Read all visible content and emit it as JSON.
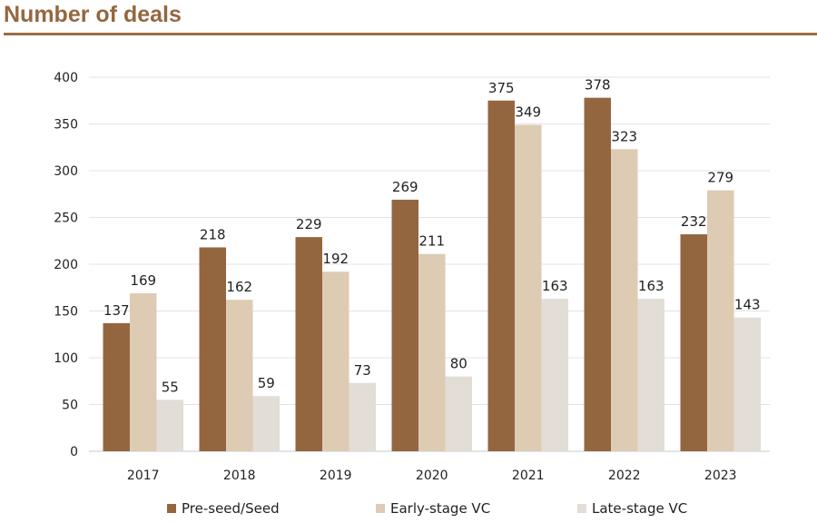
{
  "page": {
    "title": "Number of deals"
  },
  "chart_data": {
    "type": "bar",
    "title": "Number of deals",
    "xlabel": "",
    "ylabel": "",
    "ylim": [
      0,
      400
    ],
    "yticks": [
      0,
      50,
      100,
      150,
      200,
      250,
      300,
      350,
      400
    ],
    "grid": true,
    "legend_position": "bottom",
    "categories": [
      "2017",
      "2018",
      "2019",
      "2020",
      "2021",
      "2022",
      "2023"
    ],
    "series": [
      {
        "name": "Pre-seed/Seed",
        "color": "#946640",
        "values": [
          137,
          218,
          229,
          269,
          375,
          378,
          232
        ]
      },
      {
        "name": "Early-stage VC",
        "color": "#decbb3",
        "values": [
          169,
          162,
          192,
          211,
          349,
          323,
          279
        ]
      },
      {
        "name": "Late-stage VC",
        "color": "#e2ddd6",
        "values": [
          55,
          59,
          73,
          80,
          163,
          163,
          143
        ]
      }
    ]
  }
}
